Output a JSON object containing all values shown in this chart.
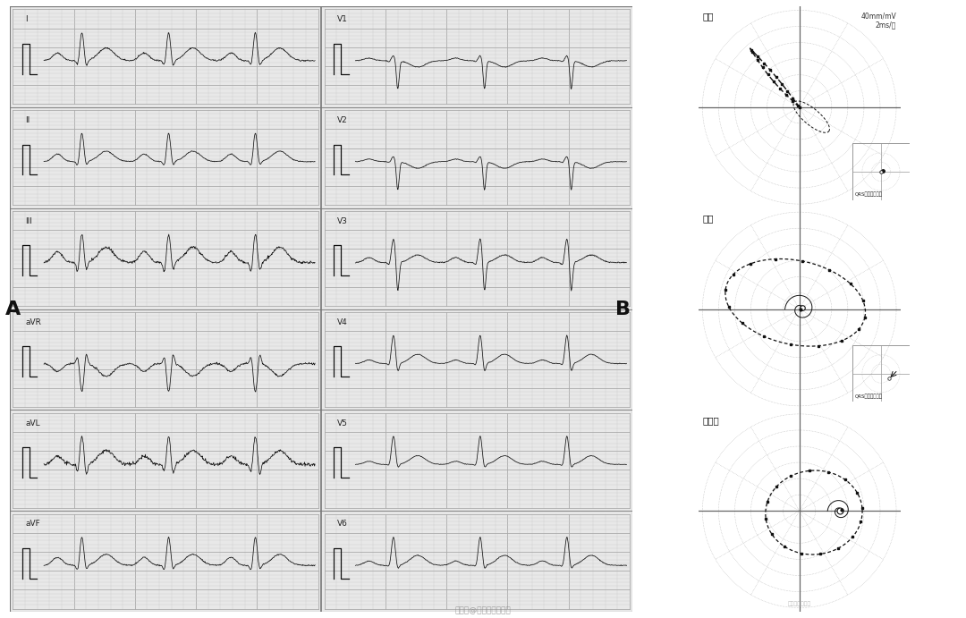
{
  "bg_color": "#ffffff",
  "ecg_bg": "#e8e8e8",
  "vcg_bg": "#e8e8e8",
  "ecg_line_color": "#1a1a1a",
  "grid_major_color": "#aaaaaa",
  "grid_minor_color": "#cccccc",
  "label_A": "A",
  "label_B": "B",
  "leads_left": [
    "I",
    "II",
    "III",
    "aVR",
    "aVL",
    "aVF"
  ],
  "leads_right": [
    "V1",
    "V2",
    "V3",
    "V4",
    "V5",
    "V6"
  ],
  "vcg_panels": [
    "额面",
    "横面",
    "右侧面"
  ],
  "vcg_annotation": "QRS环起始和终末",
  "scale_text": "40mm/mV\n2ms/点",
  "watermark1": "朱晓晓心电资讯",
  "watermark2": "搜狐号@朱晓晓心电资讯"
}
